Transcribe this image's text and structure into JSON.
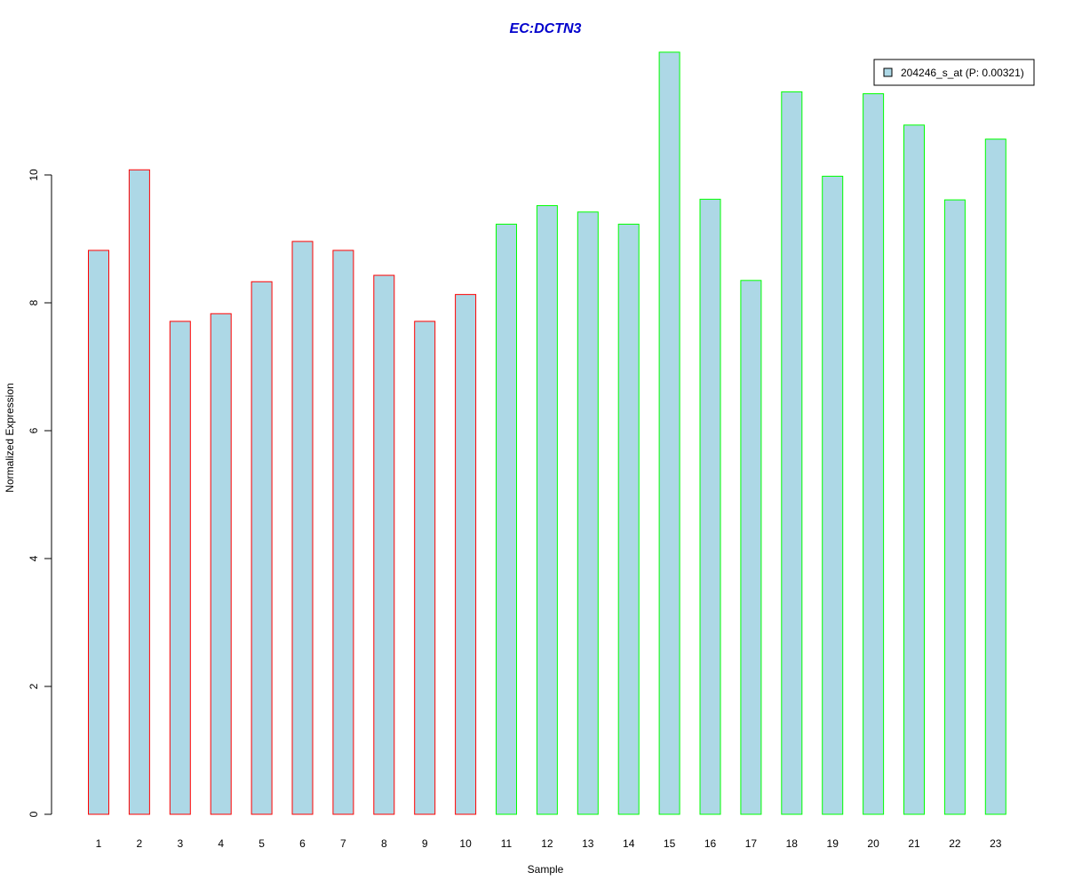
{
  "chart_data": {
    "type": "bar",
    "title": "EC:DCTN3",
    "xlabel": "Sample",
    "ylabel": "Normalized Expression",
    "categories": [
      "1",
      "2",
      "3",
      "4",
      "5",
      "6",
      "7",
      "8",
      "9",
      "10",
      "11",
      "12",
      "13",
      "14",
      "15",
      "16",
      "17",
      "18",
      "19",
      "20",
      "21",
      "22",
      "23"
    ],
    "values": [
      8.82,
      10.08,
      7.71,
      7.83,
      8.33,
      8.96,
      8.82,
      8.43,
      7.71,
      8.13,
      9.23,
      9.52,
      9.42,
      9.23,
      11.92,
      9.62,
      8.35,
      11.3,
      9.98,
      11.27,
      10.78,
      9.61,
      10.56
    ],
    "border_groups": [
      "red",
      "red",
      "red",
      "red",
      "red",
      "red",
      "red",
      "red",
      "red",
      "red",
      "green",
      "green",
      "green",
      "green",
      "green",
      "green",
      "green",
      "green",
      "green",
      "green",
      "green",
      "green",
      "green"
    ],
    "yticks": [
      0,
      2,
      4,
      6,
      8,
      10
    ],
    "ylim": [
      0,
      12
    ],
    "grid": false,
    "legend": {
      "position": "top-right",
      "entries": [
        {
          "label": "204246_s_at (P: 0.00321)",
          "fill": "#ADD8E6"
        }
      ]
    },
    "colors": {
      "bar_fill": "#ADD8E6",
      "red": "#FF0000",
      "green": "#00FF00",
      "title": "#0000CC",
      "axis": "#000000"
    }
  }
}
